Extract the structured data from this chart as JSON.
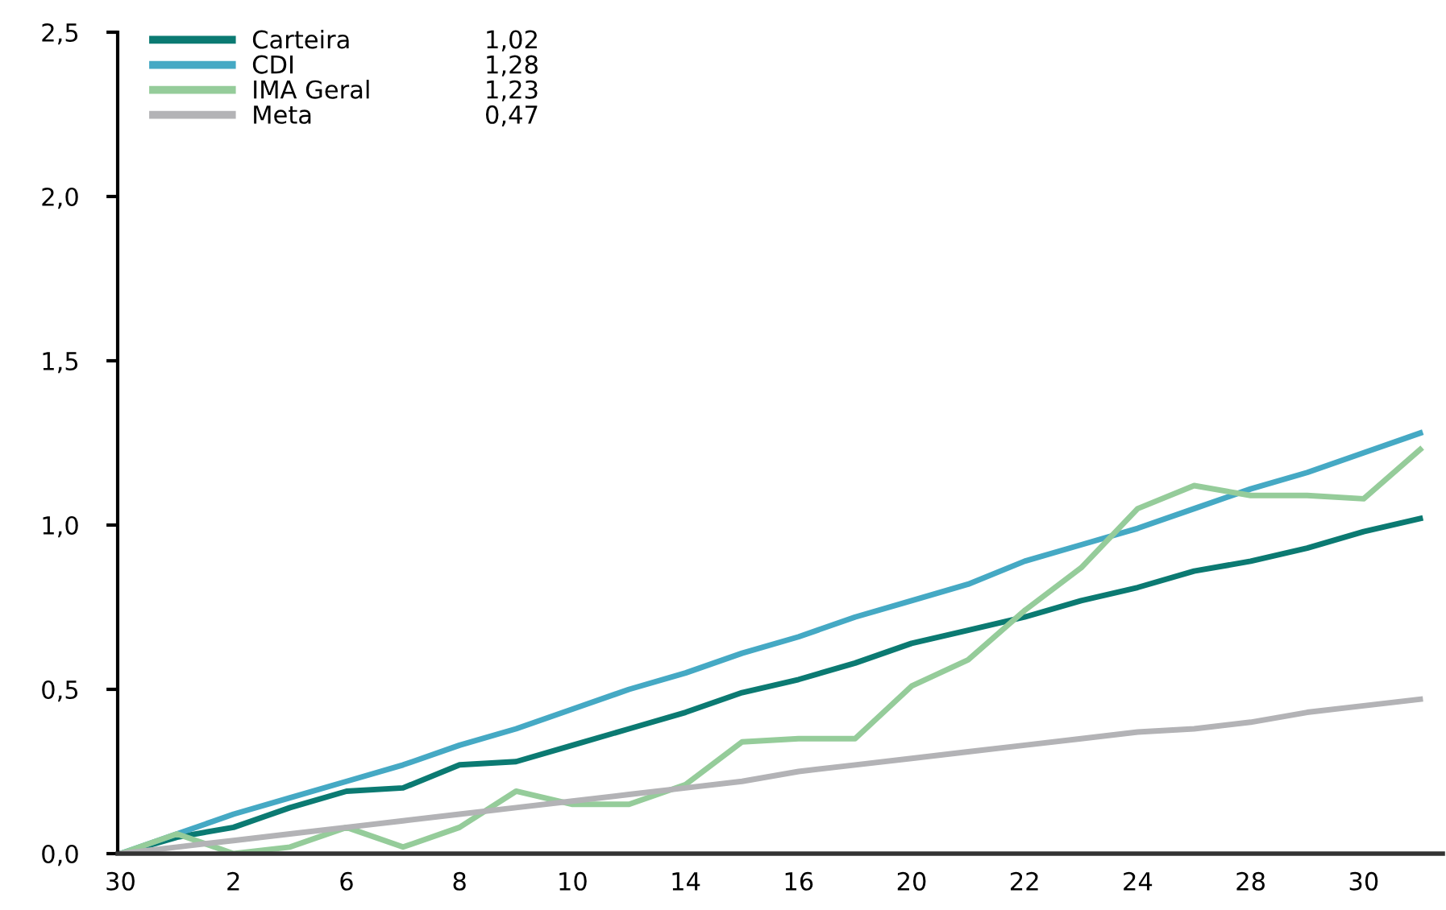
{
  "chart_data": {
    "type": "line",
    "categories": [
      "30",
      null,
      "2",
      null,
      "6",
      null,
      "8",
      null,
      "10",
      null,
      "14",
      null,
      "16",
      null,
      "20",
      null,
      "22",
      null,
      "24",
      null,
      "28",
      null,
      "30",
      null
    ],
    "series": [
      {
        "name": "Carteira",
        "color": "#0b7a72",
        "values": [
          0,
          0.05,
          0.08,
          0.14,
          0.19,
          0.2,
          0.27,
          0.28,
          0.33,
          0.38,
          0.43,
          0.49,
          0.53,
          0.58,
          0.64,
          0.68,
          0.72,
          0.77,
          0.81,
          0.86,
          0.89,
          0.93,
          0.98,
          1.02
        ]
      },
      {
        "name": "CDI",
        "color": "#45a9c4",
        "values": [
          0,
          0.06,
          0.12,
          0.17,
          0.22,
          0.27,
          0.33,
          0.38,
          0.44,
          0.5,
          0.55,
          0.61,
          0.66,
          0.72,
          0.77,
          0.82,
          0.89,
          0.94,
          0.99,
          1.05,
          1.11,
          1.16,
          1.22,
          1.28
        ]
      },
      {
        "name": "IMA Geral",
        "color": "#95cc9a",
        "values": [
          0,
          0.06,
          0.0,
          0.02,
          0.08,
          0.02,
          0.08,
          0.19,
          0.15,
          0.15,
          0.21,
          0.34,
          0.35,
          0.35,
          0.51,
          0.59,
          0.74,
          0.87,
          1.05,
          1.12,
          1.09,
          1.09,
          1.08,
          1.23
        ]
      },
      {
        "name": "Meta",
        "color": "#b3b3b6",
        "values": [
          0,
          0.02,
          0.04,
          0.06,
          0.08,
          0.1,
          0.12,
          0.14,
          0.16,
          0.18,
          0.2,
          0.22,
          0.25,
          0.27,
          0.29,
          0.31,
          0.33,
          0.35,
          0.37,
          0.38,
          0.4,
          0.43,
          0.45,
          0.47
        ]
      }
    ],
    "annotations": [
      "1,02",
      "1,28",
      "1,23",
      "0,47"
    ],
    "ylim": [
      0,
      2.5
    ],
    "yticks": [
      {
        "value": 0,
        "label": "0,0"
      },
      {
        "value": 0.5,
        "label": "0,5"
      },
      {
        "value": 1.0,
        "label": "1,0"
      },
      {
        "value": 1.5,
        "label": "1,5"
      },
      {
        "value": 2.0,
        "label": "2,0"
      },
      {
        "value": 2.5,
        "label": "2,5"
      }
    ],
    "grid": false,
    "legend": "top left",
    "marker": "none",
    "line_style": "solid"
  }
}
